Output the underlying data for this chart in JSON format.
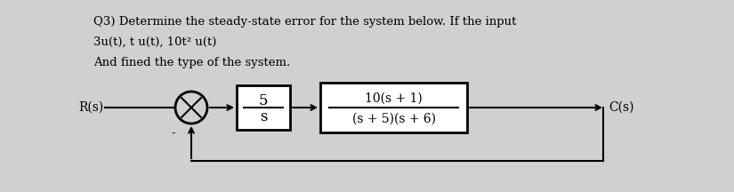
{
  "bg_color": "#d0d0d0",
  "text_color": "#000000",
  "line_color": "#000000",
  "title_lines": [
    "Q3) Determine the steady-state error for the system below. If the input",
    "3u(t), t u(t), 10t² u(t)",
    "And fined the type of the system."
  ],
  "R_label": "R(s)",
  "C_label": "C(s)",
  "block1_num": "5",
  "block1_den": "s",
  "block2_num": "10(s + 1)",
  "block2_den": "(s + 5)(s + 6)",
  "fig_width": 8.25,
  "fig_height": 2.16,
  "dpi": 100
}
